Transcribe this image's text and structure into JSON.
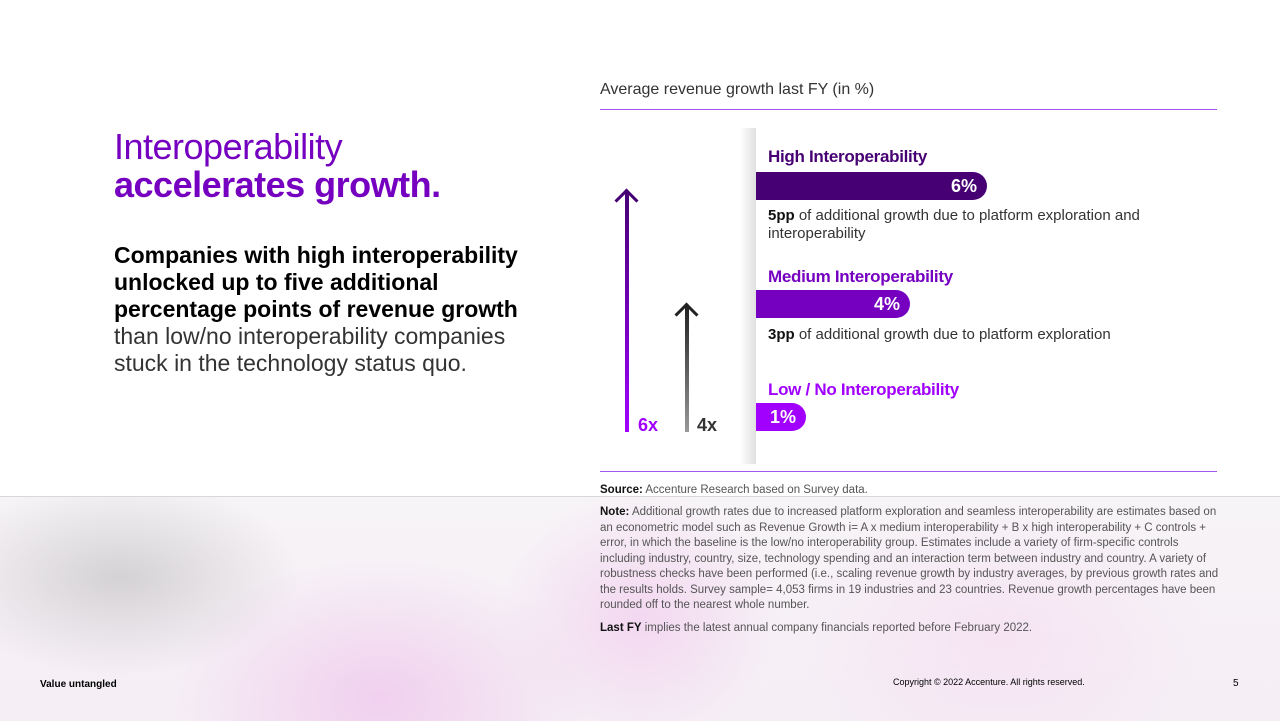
{
  "headline": {
    "line1": "Interoperability",
    "line2": "accelerates growth."
  },
  "description": {
    "bold": "Companies with high interoperability unlocked up to five additional percentage points of revenue growth",
    "regular": " than low/no interoperability companies stuck in the technology status quo."
  },
  "chart_data": {
    "type": "bar",
    "title": "Average revenue growth last FY (in %)",
    "categories": [
      "High Interoperability",
      "Medium Interoperability",
      "Low / No Interoperability"
    ],
    "values": [
      6,
      4,
      1
    ],
    "value_labels": [
      "6%",
      "4%",
      "1%"
    ],
    "colors": [
      "#460073",
      "#7500c0",
      "#a100ff"
    ],
    "annotations": [
      {
        "bold": "5pp",
        "text": " of additional growth due to platform exploration and interoperability"
      },
      {
        "bold": "3pp",
        "text": " of additional growth due to platform exploration"
      }
    ],
    "multipliers": [
      {
        "label": "6x",
        "color": "#a100ff"
      },
      {
        "label": "4x",
        "color": "#333333"
      }
    ]
  },
  "source": {
    "label": "Source:",
    "text": " Accenture Research based on Survey data."
  },
  "note": {
    "label": "Note:",
    "text": " Additional growth rates due to increased platform exploration and seamless interoperability are estimates based on an econometric model such as Revenue Growth i= A x medium interoperability + B x high interoperability + C controls + error, in which the baseline is the low/no interoperability group. Estimates include a variety of firm-specific controls including industry, country, size, technology spending and an interaction term between industry and country. A variety of robustness checks have been performed (i.e., scaling revenue growth by industry averages, by previous growth rates and the results holds. Survey sample= 4,053 firms in 19 industries and 23 countries.  Revenue growth percentages have been rounded off to the nearest whole number."
  },
  "lastfy": {
    "label": "Last FY",
    "text": " implies the latest annual company financials reported before February 2022."
  },
  "footer": {
    "left": "Value untangled",
    "copyright": "Copyright © 2022 Accenture. All rights reserved.",
    "page": "5"
  }
}
